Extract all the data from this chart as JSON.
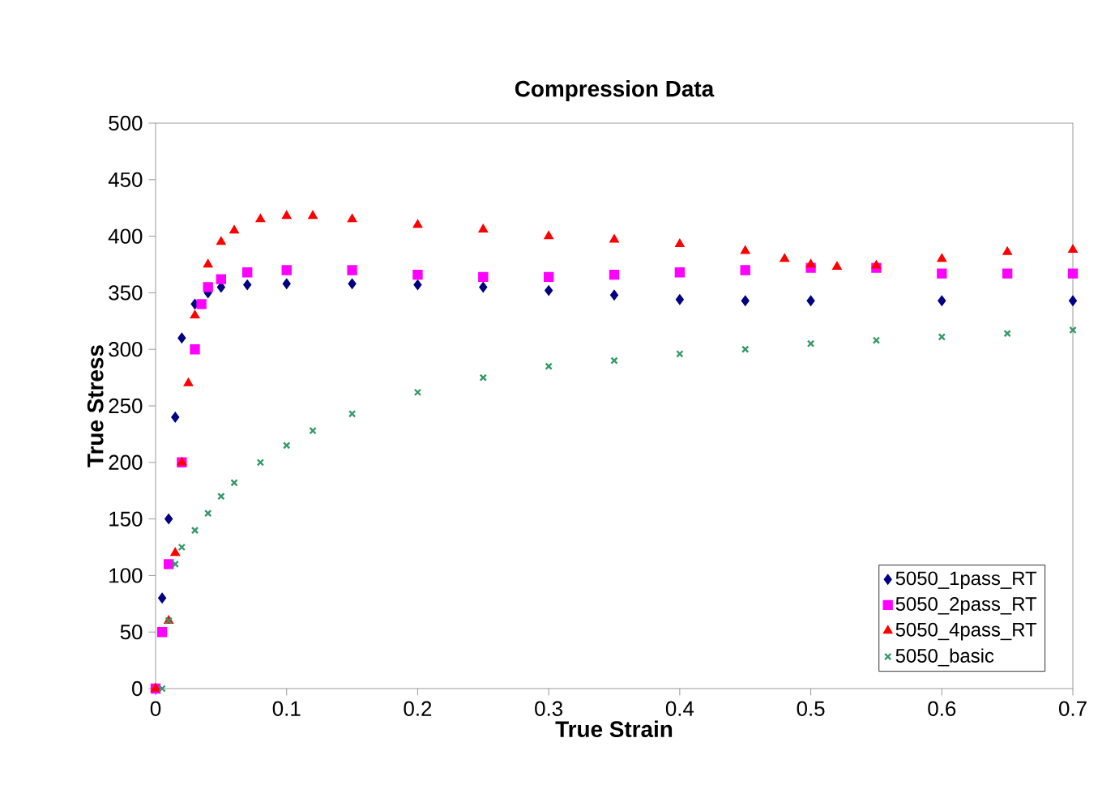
{
  "chart_data": {
    "type": "scatter",
    "title": "Compression Data",
    "xlabel": "True Strain",
    "ylabel": "True Stress",
    "xlim": [
      0,
      0.7
    ],
    "ylim": [
      0,
      500
    ],
    "xticks": [
      0,
      0.1,
      0.2,
      0.3,
      0.4,
      0.5,
      0.6,
      0.7
    ],
    "yticks": [
      0,
      50,
      100,
      150,
      200,
      250,
      300,
      350,
      400,
      450,
      500
    ],
    "legend": "bottom right",
    "series": [
      {
        "name": "5050_1pass_RT",
        "color": "#000080",
        "marker": "diamond",
        "x": [
          0,
          0.005,
          0.01,
          0.015,
          0.02,
          0.03,
          0.04,
          0.05,
          0.07,
          0.1,
          0.15,
          0.2,
          0.25,
          0.3,
          0.35,
          0.4,
          0.45,
          0.5,
          0.6,
          0.7
        ],
        "values": [
          0,
          80,
          150,
          240,
          310,
          340,
          350,
          355,
          357,
          358,
          358,
          357,
          355,
          352,
          348,
          344,
          343,
          343,
          343,
          343
        ]
      },
      {
        "name": "5050_2pass_RT",
        "color": "#ff00ff",
        "marker": "square",
        "x": [
          0,
          0.005,
          0.01,
          0.02,
          0.03,
          0.035,
          0.04,
          0.05,
          0.07,
          0.1,
          0.15,
          0.2,
          0.25,
          0.3,
          0.35,
          0.4,
          0.45,
          0.5,
          0.55,
          0.6,
          0.65,
          0.7
        ],
        "values": [
          0,
          50,
          110,
          200,
          300,
          340,
          355,
          362,
          368,
          370,
          370,
          366,
          364,
          364,
          366,
          368,
          370,
          372,
          372,
          367,
          367,
          367
        ]
      },
      {
        "name": "5050_4pass_RT",
        "color": "#ff0000",
        "marker": "triangle",
        "x": [
          0,
          0.01,
          0.015,
          0.02,
          0.025,
          0.03,
          0.04,
          0.05,
          0.06,
          0.08,
          0.1,
          0.12,
          0.15,
          0.2,
          0.25,
          0.3,
          0.35,
          0.4,
          0.45,
          0.48,
          0.5,
          0.52,
          0.55,
          0.6,
          0.65,
          0.7
        ],
        "values": [
          0,
          60,
          120,
          200,
          270,
          330,
          375,
          395,
          405,
          415,
          418,
          418,
          415,
          410,
          406,
          400,
          397,
          393,
          387,
          380,
          375,
          373,
          374,
          380,
          386,
          388
        ]
      },
      {
        "name": "5050_basic",
        "color": "#339966",
        "marker": "cross",
        "x": [
          0.005,
          0.01,
          0.015,
          0.02,
          0.03,
          0.04,
          0.05,
          0.06,
          0.08,
          0.1,
          0.12,
          0.15,
          0.2,
          0.25,
          0.3,
          0.35,
          0.4,
          0.45,
          0.5,
          0.55,
          0.6,
          0.65,
          0.7
        ],
        "values": [
          0,
          60,
          110,
          125,
          140,
          155,
          170,
          182,
          200,
          215,
          228,
          243,
          262,
          275,
          285,
          290,
          296,
          300,
          305,
          308,
          311,
          314,
          317
        ]
      }
    ]
  }
}
